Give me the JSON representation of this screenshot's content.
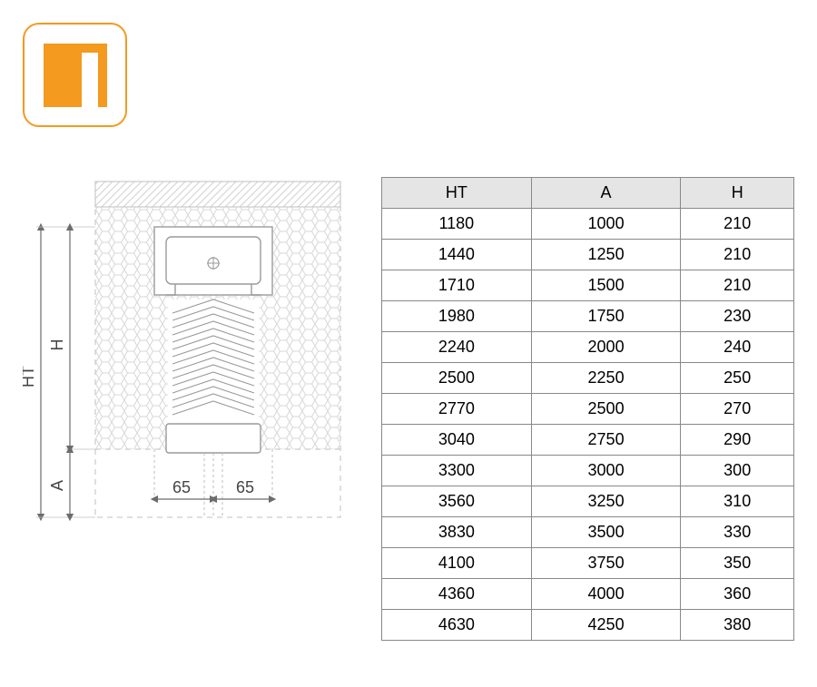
{
  "logo": {
    "border_color": "#f39a1f",
    "fill_color": "#f39a1f",
    "door_color": "#ffffff"
  },
  "diagram": {
    "labels": {
      "HT": "HT",
      "H": "H",
      "A": "A",
      "left_width": "65",
      "right_width": "65"
    },
    "stroke_color": "#9a9a9a",
    "hatch_color": "#d7d7d7",
    "honeycomb_color": "#d7d7d7",
    "dim_color": "#6c6c6c",
    "text_color": "#444444",
    "label_font_size": 18
  },
  "table": {
    "columns": [
      "HT",
      "A",
      "H"
    ],
    "rows": [
      [
        "1180",
        "1000",
        "210"
      ],
      [
        "1440",
        "1250",
        "210"
      ],
      [
        "1710",
        "1500",
        "210"
      ],
      [
        "1980",
        "1750",
        "230"
      ],
      [
        "2240",
        "2000",
        "240"
      ],
      [
        "2500",
        "2250",
        "250"
      ],
      [
        "2770",
        "2500",
        "270"
      ],
      [
        "3040",
        "2750",
        "290"
      ],
      [
        "3300",
        "3000",
        "300"
      ],
      [
        "3560",
        "3250",
        "310"
      ],
      [
        "3830",
        "3500",
        "330"
      ],
      [
        "4100",
        "3750",
        "350"
      ],
      [
        "4360",
        "4000",
        "360"
      ],
      [
        "4630",
        "4250",
        "380"
      ]
    ],
    "header_bg": "#e5e5e5",
    "border_color": "#888888",
    "font_size": 18
  }
}
